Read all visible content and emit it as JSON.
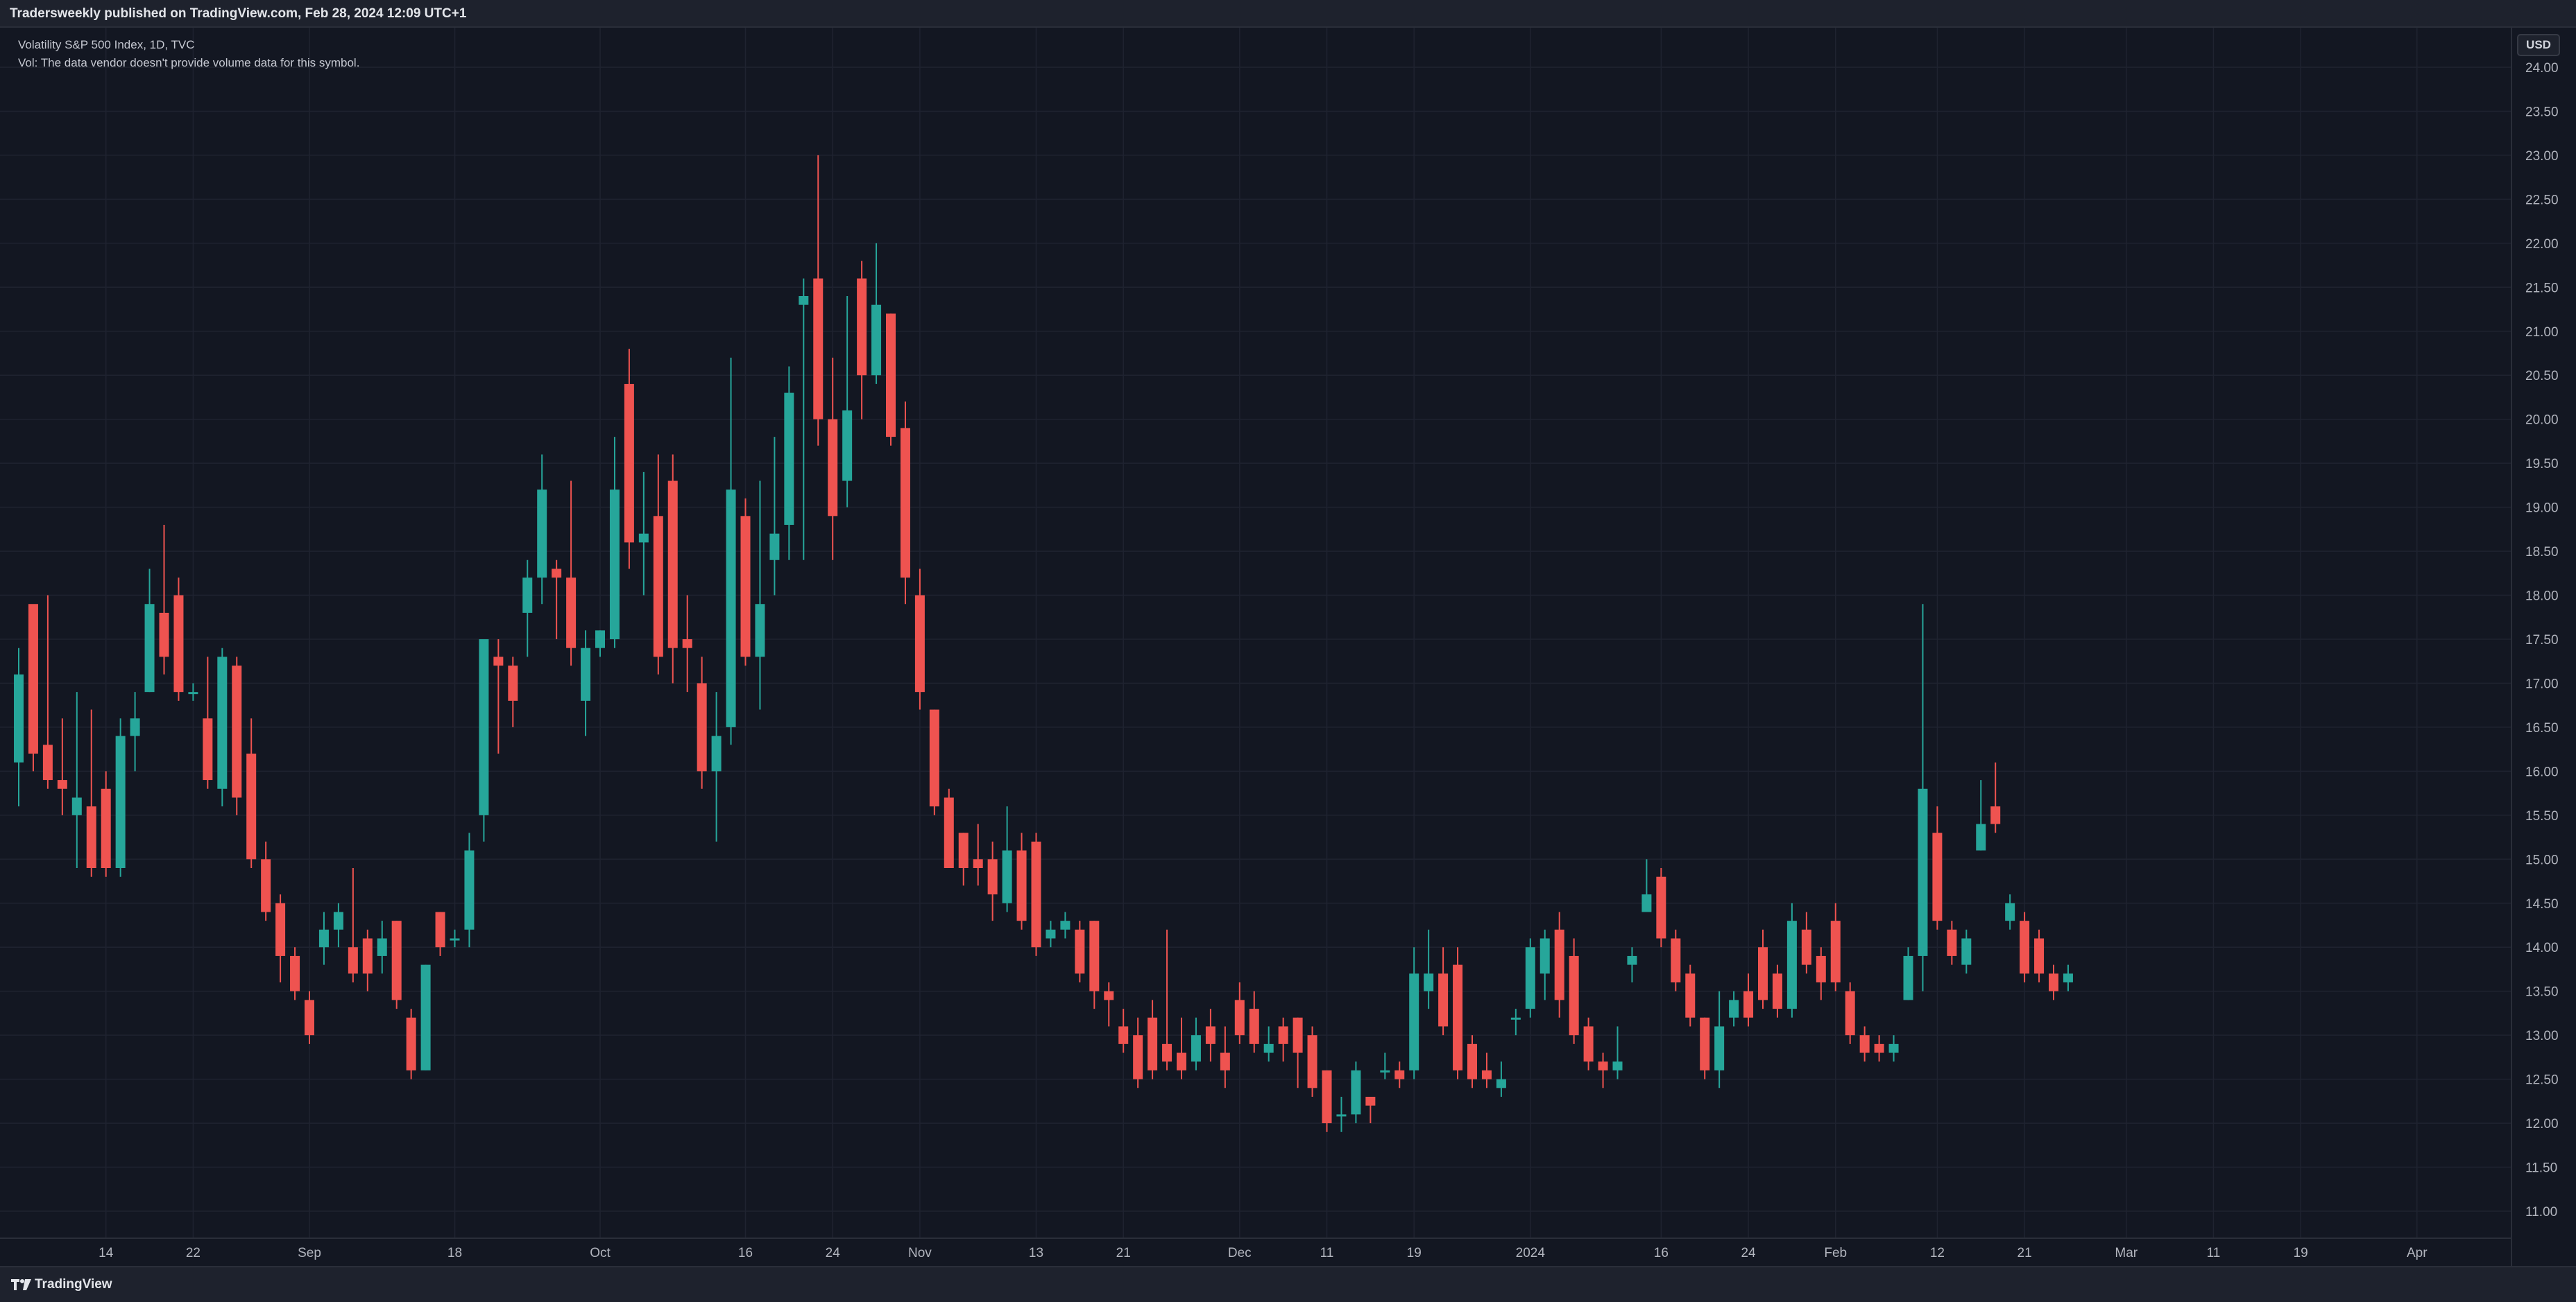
{
  "header": {
    "publish_text": "Tradersweekly published on TradingView.com, Feb 28, 2024 12:09 UTC+1"
  },
  "legend": {
    "symbol_line": "Volatility S&P 500 Index, 1D, TVC",
    "volume_line": "Vol: The data vendor doesn't provide volume data for this symbol."
  },
  "price_scale": {
    "currency": "USD"
  },
  "footer": {
    "brand": "TradingView"
  },
  "colors": {
    "up": "#26a69a",
    "down": "#ef5350",
    "background": "#131722",
    "grid": "#1f2330"
  },
  "chart_data": {
    "type": "candlestick",
    "title": "Volatility S&P 500 Index, 1D, TVC",
    "ylim": [
      10.6,
      24.2
    ],
    "yticks": [
      "24.00",
      "23.50",
      "23.00",
      "22.50",
      "22.00",
      "21.50",
      "21.00",
      "20.50",
      "20.00",
      "19.50",
      "19.00",
      "18.50",
      "18.00",
      "17.50",
      "17.00",
      "16.50",
      "16.00",
      "15.50",
      "15.00",
      "14.50",
      "14.00",
      "13.50",
      "13.00",
      "12.50",
      "12.00",
      "11.50",
      "11.00"
    ],
    "xticks": [
      {
        "label": "14",
        "i": 6
      },
      {
        "label": "22",
        "i": 12
      },
      {
        "label": "Sep",
        "i": 20
      },
      {
        "label": "18",
        "i": 30
      },
      {
        "label": "Oct",
        "i": 40
      },
      {
        "label": "16",
        "i": 50
      },
      {
        "label": "24",
        "i": 56
      },
      {
        "label": "Nov",
        "i": 62
      },
      {
        "label": "13",
        "i": 70
      },
      {
        "label": "21",
        "i": 76
      },
      {
        "label": "Dec",
        "i": 84
      },
      {
        "label": "11",
        "i": 90
      },
      {
        "label": "19",
        "i": 96
      },
      {
        "label": "2024",
        "i": 104
      },
      {
        "label": "16",
        "i": 113
      },
      {
        "label": "24",
        "i": 119
      },
      {
        "label": "Feb",
        "i": 125
      },
      {
        "label": "12",
        "i": 132
      },
      {
        "label": "21",
        "i": 138
      },
      {
        "label": "Mar",
        "i": 145
      },
      {
        "label": "11",
        "i": 151
      },
      {
        "label": "19",
        "i": 157
      },
      {
        "label": "Apr",
        "i": 165
      }
    ],
    "candles": [
      [
        16.1,
        17.1,
        17.4,
        15.6
      ],
      [
        17.9,
        16.2,
        17.3,
        16.0
      ],
      [
        16.3,
        15.9,
        18.0,
        15.8
      ],
      [
        15.9,
        15.8,
        16.6,
        15.5
      ],
      [
        15.5,
        15.7,
        16.9,
        14.9
      ],
      [
        15.6,
        14.9,
        16.7,
        14.8
      ],
      [
        15.8,
        14.9,
        16.0,
        14.8
      ],
      [
        14.9,
        16.4,
        16.6,
        14.8
      ],
      [
        16.4,
        16.6,
        16.9,
        16.0
      ],
      [
        16.9,
        17.9,
        18.3,
        16.9
      ],
      [
        17.8,
        17.3,
        18.8,
        17.1
      ],
      [
        18.0,
        16.9,
        18.2,
        16.8
      ],
      [
        16.9,
        16.9,
        17.0,
        16.8
      ],
      [
        16.6,
        15.9,
        17.3,
        15.8
      ],
      [
        15.8,
        17.3,
        17.4,
        15.6
      ],
      [
        17.2,
        15.7,
        17.3,
        15.5
      ],
      [
        16.2,
        15.0,
        16.6,
        14.9
      ],
      [
        15.0,
        14.4,
        15.2,
        14.3
      ],
      [
        14.5,
        13.9,
        14.6,
        13.6
      ],
      [
        13.9,
        13.5,
        14.0,
        13.4
      ],
      [
        13.4,
        13.0,
        13.5,
        12.9
      ],
      [
        14.0,
        14.2,
        14.4,
        13.8
      ],
      [
        14.2,
        14.4,
        14.5,
        14.0
      ],
      [
        14.0,
        13.7,
        14.9,
        13.6
      ],
      [
        14.1,
        13.7,
        14.2,
        13.5
      ],
      [
        13.9,
        14.1,
        14.3,
        13.7
      ],
      [
        14.3,
        13.4,
        14.3,
        13.3
      ],
      [
        13.2,
        12.6,
        13.3,
        12.5
      ],
      [
        12.6,
        13.8,
        13.8,
        12.6
      ],
      [
        14.4,
        14.0,
        14.4,
        13.9
      ],
      [
        14.1,
        14.1,
        14.2,
        14.0
      ],
      [
        14.2,
        15.1,
        15.3,
        14.0
      ],
      [
        15.5,
        17.5,
        17.5,
        15.2
      ],
      [
        17.3,
        17.2,
        17.5,
        16.2
      ],
      [
        17.2,
        16.8,
        17.3,
        16.5
      ],
      [
        17.8,
        18.2,
        18.4,
        17.3
      ],
      [
        18.2,
        19.2,
        19.6,
        17.9
      ],
      [
        18.3,
        18.2,
        18.4,
        17.5
      ],
      [
        18.2,
        17.4,
        19.3,
        17.2
      ],
      [
        16.8,
        17.4,
        17.6,
        16.4
      ],
      [
        17.4,
        17.6,
        17.6,
        17.3
      ],
      [
        17.5,
        19.2,
        19.8,
        17.4
      ],
      [
        20.4,
        18.6,
        20.8,
        18.3
      ],
      [
        18.6,
        18.7,
        19.4,
        18.0
      ],
      [
        18.9,
        17.3,
        19.6,
        17.1
      ],
      [
        19.3,
        17.4,
        19.6,
        17.0
      ],
      [
        17.5,
        17.4,
        18.0,
        16.9
      ],
      [
        17.0,
        16.0,
        17.3,
        15.8
      ],
      [
        16.0,
        16.4,
        16.9,
        15.2
      ],
      [
        16.5,
        19.2,
        20.7,
        16.3
      ],
      [
        18.9,
        17.3,
        19.1,
        17.2
      ],
      [
        17.3,
        17.9,
        19.3,
        16.7
      ],
      [
        18.4,
        18.7,
        19.8,
        18.0
      ],
      [
        18.8,
        20.3,
        20.6,
        18.4
      ],
      [
        21.3,
        21.4,
        21.6,
        18.4
      ],
      [
        21.6,
        20.0,
        23.0,
        19.7
      ],
      [
        20.0,
        18.9,
        20.7,
        18.4
      ],
      [
        19.3,
        20.1,
        21.4,
        19.0
      ],
      [
        21.6,
        20.5,
        21.8,
        20.0
      ],
      [
        20.5,
        21.3,
        22.0,
        20.4
      ],
      [
        21.2,
        19.8,
        21.2,
        19.7
      ],
      [
        19.9,
        18.2,
        20.2,
        17.9
      ],
      [
        18.0,
        16.9,
        18.3,
        16.7
      ],
      [
        16.7,
        15.6,
        16.7,
        15.5
      ],
      [
        15.7,
        14.9,
        15.8,
        14.9
      ],
      [
        15.3,
        14.9,
        15.3,
        14.7
      ],
      [
        15.0,
        14.9,
        15.4,
        14.7
      ],
      [
        15.0,
        14.6,
        15.2,
        14.3
      ],
      [
        14.5,
        15.1,
        15.6,
        14.4
      ],
      [
        15.1,
        14.3,
        15.3,
        14.2
      ],
      [
        15.2,
        14.0,
        15.3,
        13.9
      ],
      [
        14.1,
        14.2,
        14.3,
        14.0
      ],
      [
        14.2,
        14.3,
        14.4,
        14.1
      ],
      [
        14.2,
        13.7,
        14.3,
        13.6
      ],
      [
        14.3,
        13.5,
        14.3,
        13.3
      ],
      [
        13.5,
        13.4,
        13.6,
        13.1
      ],
      [
        13.1,
        12.9,
        13.3,
        12.8
      ],
      [
        13.0,
        12.5,
        13.2,
        12.4
      ],
      [
        13.2,
        12.6,
        13.4,
        12.5
      ],
      [
        12.9,
        12.7,
        14.2,
        12.6
      ],
      [
        12.8,
        12.6,
        13.2,
        12.5
      ],
      [
        12.7,
        13.0,
        13.2,
        12.6
      ],
      [
        13.1,
        12.9,
        13.3,
        12.7
      ],
      [
        12.8,
        12.6,
        13.1,
        12.4
      ],
      [
        13.4,
        13.0,
        13.6,
        12.9
      ],
      [
        13.3,
        12.9,
        13.5,
        12.8
      ],
      [
        12.8,
        12.9,
        13.1,
        12.7
      ],
      [
        13.1,
        12.9,
        13.2,
        12.7
      ],
      [
        13.2,
        12.8,
        13.2,
        12.4
      ],
      [
        13.0,
        12.4,
        13.1,
        12.3
      ],
      [
        12.6,
        12.0,
        12.6,
        11.9
      ],
      [
        12.1,
        12.1,
        12.3,
        11.9
      ],
      [
        12.1,
        12.6,
        12.7,
        12.0
      ],
      [
        12.3,
        12.2,
        12.3,
        12.0
      ],
      [
        12.6,
        12.6,
        12.8,
        12.5
      ],
      [
        12.6,
        12.5,
        12.7,
        12.4
      ],
      [
        12.6,
        13.7,
        14.0,
        12.5
      ],
      [
        13.5,
        13.7,
        14.2,
        13.3
      ],
      [
        13.7,
        13.1,
        14.0,
        13.0
      ],
      [
        13.8,
        12.6,
        14.0,
        12.5
      ],
      [
        12.9,
        12.5,
        13.0,
        12.4
      ],
      [
        12.6,
        12.5,
        12.8,
        12.4
      ],
      [
        12.4,
        12.5,
        12.7,
        12.3
      ],
      [
        13.2,
        13.2,
        13.3,
        13.0
      ],
      [
        13.3,
        14.0,
        14.1,
        13.2
      ],
      [
        13.7,
        14.1,
        14.2,
        13.4
      ],
      [
        14.2,
        13.4,
        14.4,
        13.2
      ],
      [
        13.9,
        13.0,
        14.1,
        12.9
      ],
      [
        13.1,
        12.7,
        13.2,
        12.6
      ],
      [
        12.7,
        12.6,
        12.8,
        12.4
      ],
      [
        12.6,
        12.7,
        13.1,
        12.5
      ],
      [
        13.8,
        13.9,
        14.0,
        13.6
      ],
      [
        14.4,
        14.6,
        15.0,
        14.5
      ],
      [
        14.8,
        14.1,
        14.9,
        14.0
      ],
      [
        14.1,
        13.6,
        14.2,
        13.5
      ],
      [
        13.7,
        13.2,
        13.8,
        13.1
      ],
      [
        13.2,
        12.6,
        13.2,
        12.5
      ],
      [
        12.6,
        13.1,
        13.5,
        12.4
      ],
      [
        13.2,
        13.4,
        13.5,
        13.1
      ],
      [
        13.5,
        13.2,
        13.7,
        13.1
      ],
      [
        14.0,
        13.4,
        14.2,
        13.3
      ],
      [
        13.7,
        13.3,
        13.8,
        13.2
      ],
      [
        13.3,
        14.3,
        14.5,
        13.2
      ],
      [
        14.2,
        13.8,
        14.4,
        13.7
      ],
      [
        13.9,
        13.6,
        14.0,
        13.4
      ],
      [
        14.3,
        13.6,
        14.5,
        13.5
      ],
      [
        13.5,
        13.0,
        13.6,
        12.9
      ],
      [
        13.0,
        12.8,
        13.1,
        12.7
      ],
      [
        12.9,
        12.8,
        13.0,
        12.7
      ],
      [
        12.8,
        12.9,
        13.0,
        12.7
      ],
      [
        13.4,
        13.9,
        14.0,
        13.4
      ],
      [
        13.9,
        15.8,
        17.9,
        13.5
      ],
      [
        15.3,
        14.3,
        15.6,
        14.2
      ],
      [
        14.2,
        13.9,
        14.3,
        13.8
      ],
      [
        13.8,
        14.1,
        14.2,
        13.7
      ],
      [
        15.1,
        15.4,
        15.9,
        15.1
      ],
      [
        15.6,
        15.4,
        16.1,
        15.3
      ],
      [
        14.3,
        14.5,
        14.6,
        14.2
      ],
      [
        14.3,
        13.7,
        14.4,
        13.6
      ],
      [
        14.1,
        13.7,
        14.2,
        13.6
      ],
      [
        13.7,
        13.5,
        13.8,
        13.4
      ],
      [
        13.6,
        13.7,
        13.8,
        13.5
      ]
    ]
  }
}
